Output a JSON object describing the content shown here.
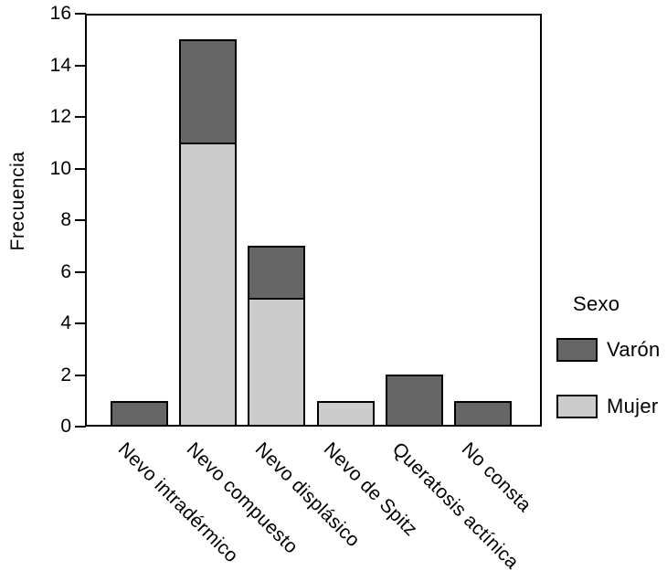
{
  "chart_data": {
    "type": "bar",
    "stacked": true,
    "title": "",
    "xlabel": "",
    "ylabel": "Frecuencia",
    "ylim": [
      0,
      16
    ],
    "yticks": [
      0,
      2,
      4,
      6,
      8,
      10,
      12,
      14,
      16
    ],
    "grid": false,
    "categories": [
      "Nevo intradérmico",
      "Nevo compuesto",
      "Nevo displásico",
      "Nevo de Spitz",
      "Queratosis actínica",
      "No consta"
    ],
    "series": [
      {
        "name": "Varón",
        "key": "varon",
        "color": "#666666",
        "values": [
          1,
          4,
          2,
          0,
          2,
          1
        ]
      },
      {
        "name": "Mujer",
        "key": "mujer",
        "color": "#cccccc",
        "values": [
          0,
          11,
          5,
          1,
          0,
          0
        ]
      }
    ],
    "stack_order_bottom_to_top": [
      "Mujer",
      "Varón"
    ],
    "totals": [
      1,
      15,
      7,
      1,
      2,
      1
    ],
    "legend": {
      "title": "Sexo",
      "position": "right",
      "entries": [
        {
          "label": "Varón",
          "color": "#666666"
        },
        {
          "label": "Mujer",
          "color": "#cccccc"
        }
      ]
    }
  },
  "colors": {
    "varon": "#666666",
    "mujer": "#cccccc",
    "axis": "#000000",
    "background": "#ffffff"
  }
}
